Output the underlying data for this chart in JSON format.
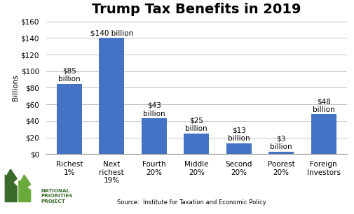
{
  "title": "Trump Tax Benefits in 2019",
  "categories": [
    "Richest\n1%",
    "Next\nrichest\n19%",
    "Fourth\n20%",
    "Middle\n20%",
    "Second\n20%",
    "Poorest\n20%",
    "Foreign\nInvestors"
  ],
  "values": [
    85,
    140,
    43,
    25,
    13,
    3,
    48
  ],
  "bar_labels_line1": [
    "$85",
    "$140 billion",
    "$43",
    "$25",
    "$13",
    "$3",
    "$48"
  ],
  "bar_labels_line2": [
    "billion",
    "",
    "billion",
    "billion",
    "billion",
    "billion",
    "billion"
  ],
  "bar_color": "#4472C4",
  "ylabel": "Billions",
  "ylim": [
    0,
    160
  ],
  "yticks": [
    0,
    20,
    40,
    60,
    80,
    100,
    120,
    140,
    160
  ],
  "ytick_labels": [
    "$0",
    "$20",
    "$40",
    "$60",
    "$80",
    "$100",
    "$120",
    "$140",
    "$160"
  ],
  "source_text": "Source:  Institute for Taxation and Economic Policy",
  "title_fontsize": 14,
  "label_fontsize": 7.5,
  "axis_fontsize": 7.5,
  "tick_fontsize": 7.5,
  "background_color": "#ffffff",
  "logo_text": "NATIONAL\nPRIORITIES\nPROJECT",
  "logo_color": "#3a6b2a"
}
